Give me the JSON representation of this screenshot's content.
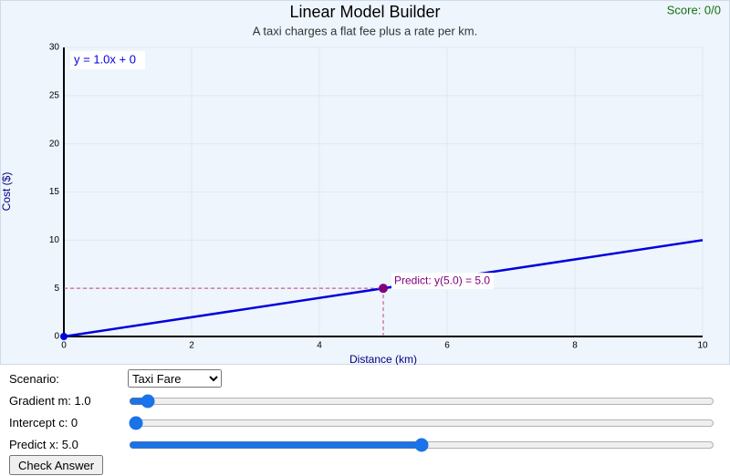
{
  "header": {
    "title": "Linear Model Builder",
    "subtitle": "A taxi charges a flat fee plus a rate per km.",
    "score": "Score: 0/0"
  },
  "chart_data": {
    "type": "line",
    "x_label": "Distance (km)",
    "y_label": "Cost ($)",
    "xlim": [
      0,
      10
    ],
    "ylim": [
      0,
      30
    ],
    "xticks": [
      0,
      2,
      4,
      6,
      8,
      10
    ],
    "yticks": [
      0,
      5,
      10,
      15,
      20,
      25,
      30
    ],
    "grid": true,
    "x": [
      0,
      10
    ],
    "series": [
      {
        "color": "#0000dd",
        "values": [
          0,
          10
        ]
      }
    ],
    "equation": "y = 1.0x + 0",
    "prediction": {
      "x": 5,
      "y": 5,
      "label": "Predict: y(5.0) = 5.0",
      "color": "#800080"
    }
  },
  "controls": {
    "scenario_label": "Scenario:",
    "scenario": "Taxi Fare",
    "sliders": [
      {
        "label": "Gradient m: 1.0",
        "value": 1.0,
        "min": 0,
        "max": 50
      },
      {
        "label": "Intercept c: 0",
        "value": 0,
        "min": 0,
        "max": 50
      },
      {
        "label": "Predict x: 5.0",
        "value": 5.0,
        "min": 0,
        "max": 10
      }
    ],
    "button": "Check Answer"
  }
}
